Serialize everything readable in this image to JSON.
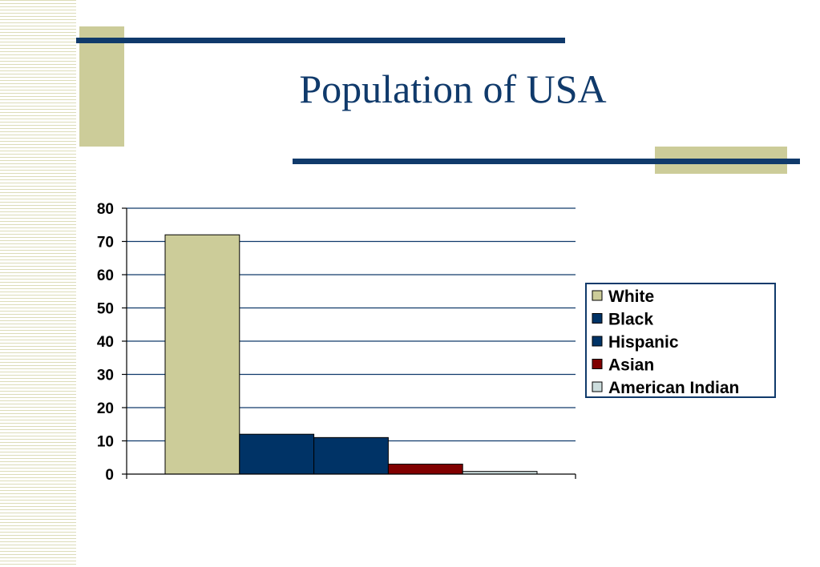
{
  "slide": {
    "title": "Population of USA",
    "accent_color": "#103a6b",
    "decor_color": "#cccc99"
  },
  "chart_data": {
    "type": "bar",
    "ylim": [
      0,
      80
    ],
    "yticks": [
      0,
      10,
      20,
      30,
      40,
      50,
      60,
      70,
      80
    ],
    "grid": true,
    "legend_position": "right",
    "series": [
      {
        "name": "White",
        "value": 72,
        "color": "#cccc99"
      },
      {
        "name": "Black",
        "value": 12,
        "color": "#003366"
      },
      {
        "name": "Hispanic",
        "value": 11,
        "color": "#003366"
      },
      {
        "name": "Asian",
        "value": 3,
        "color": "#800000"
      },
      {
        "name": "American Indian",
        "value": 0.8,
        "color": "#ccdddd"
      }
    ]
  }
}
